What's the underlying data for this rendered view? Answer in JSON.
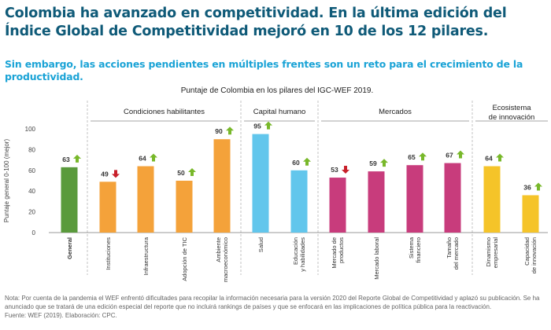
{
  "headline": "Colombia ha avanzado en competitividad. En la última edición del Índice Global de Competitividad mejoró en 10 de los 12 pilares.",
  "subheadline": "Sin embargo, las acciones pendientes en múltiples frentes son un reto para el crecimiento de la productividad.",
  "note": "Nota: Por cuenta de la pandemia el WEF enfrentó dificultades para recopilar la información necesaria para la versión 2020 del Reporte Global de Competitividad y aplazó su publicación. Se ha anunciado que se tratará de una edición especial del reporte que no incluirá rankings de países y que se enfocará en las implicaciones de política pública para la reactivación.",
  "source": "Fuente: WEF (2019). Elaboración: CPC.",
  "colors": {
    "general": "#5a9a3c",
    "condiciones": "#f4a23a",
    "capital": "#62c6ec",
    "mercados": "#c83c7c",
    "ecosistema": "#f5c429",
    "up": "#78b82a",
    "down": "#c8202a"
  },
  "chart_data": {
    "type": "bar",
    "title": "Puntaje de Colombia en los pilares del IGC-WEF 2019.",
    "ylabel": "Puntaje general 0-100 (mejor)",
    "ylim": [
      0,
      100
    ],
    "yticks": [
      0,
      20,
      40,
      60,
      80,
      100
    ],
    "groups": [
      {
        "name": "Condiciones habilitantes",
        "lines": [
          "Condiciones habilitantes"
        ]
      },
      {
        "name": "Capital humano",
        "lines": [
          "Capital humano"
        ]
      },
      {
        "name": "Mercados",
        "lines": [
          "Mercados"
        ]
      },
      {
        "name": "Ecosistema de innovación",
        "lines": [
          "Ecosistema",
          "de innovación"
        ]
      }
    ],
    "bars": [
      {
        "label": "General",
        "lines": [
          "General"
        ],
        "value": 63,
        "trend": "up",
        "group": "general",
        "bold": true
      },
      {
        "label": "Instituciones",
        "lines": [
          "Instituciones"
        ],
        "value": 49,
        "trend": "down",
        "group": "condiciones"
      },
      {
        "label": "Infraestructura",
        "lines": [
          "Infraestructura"
        ],
        "value": 64,
        "trend": "up",
        "group": "condiciones"
      },
      {
        "label": "Adopción de TIC",
        "lines": [
          "Adopción de TIC"
        ],
        "value": 50,
        "trend": "up",
        "group": "condiciones"
      },
      {
        "label": "Ambiente macroeconómico",
        "lines": [
          "Ambiente",
          "macroeconómico"
        ],
        "value": 90,
        "trend": "up",
        "group": "condiciones"
      },
      {
        "label": "Salud",
        "lines": [
          "Salud"
        ],
        "value": 95,
        "trend": "up",
        "group": "capital"
      },
      {
        "label": "Educación y habilidades",
        "lines": [
          "Educación",
          "y habilidades"
        ],
        "value": 60,
        "trend": "up",
        "group": "capital"
      },
      {
        "label": "Mercado de productos",
        "lines": [
          "Mercado de",
          "productos"
        ],
        "value": 53,
        "trend": "down",
        "group": "mercados"
      },
      {
        "label": "Mercado laboral",
        "lines": [
          "Mercado laboral"
        ],
        "value": 59,
        "trend": "up",
        "group": "mercados"
      },
      {
        "label": "Sistema financiero",
        "lines": [
          "Sistema",
          "financiero"
        ],
        "value": 65,
        "trend": "up",
        "group": "mercados"
      },
      {
        "label": "Tamaño del mercado",
        "lines": [
          "Tamaño",
          "del mercado"
        ],
        "value": 67,
        "trend": "up",
        "group": "mercados"
      },
      {
        "label": "Dinamismo empresarial",
        "lines": [
          "Dinamismo",
          "empresarial"
        ],
        "value": 64,
        "trend": "up",
        "group": "ecosistema"
      },
      {
        "label": "Capacidad de innovación",
        "lines": [
          "Capacidad",
          "de innovación"
        ],
        "value": 36,
        "trend": "up",
        "group": "ecosistema"
      }
    ]
  }
}
